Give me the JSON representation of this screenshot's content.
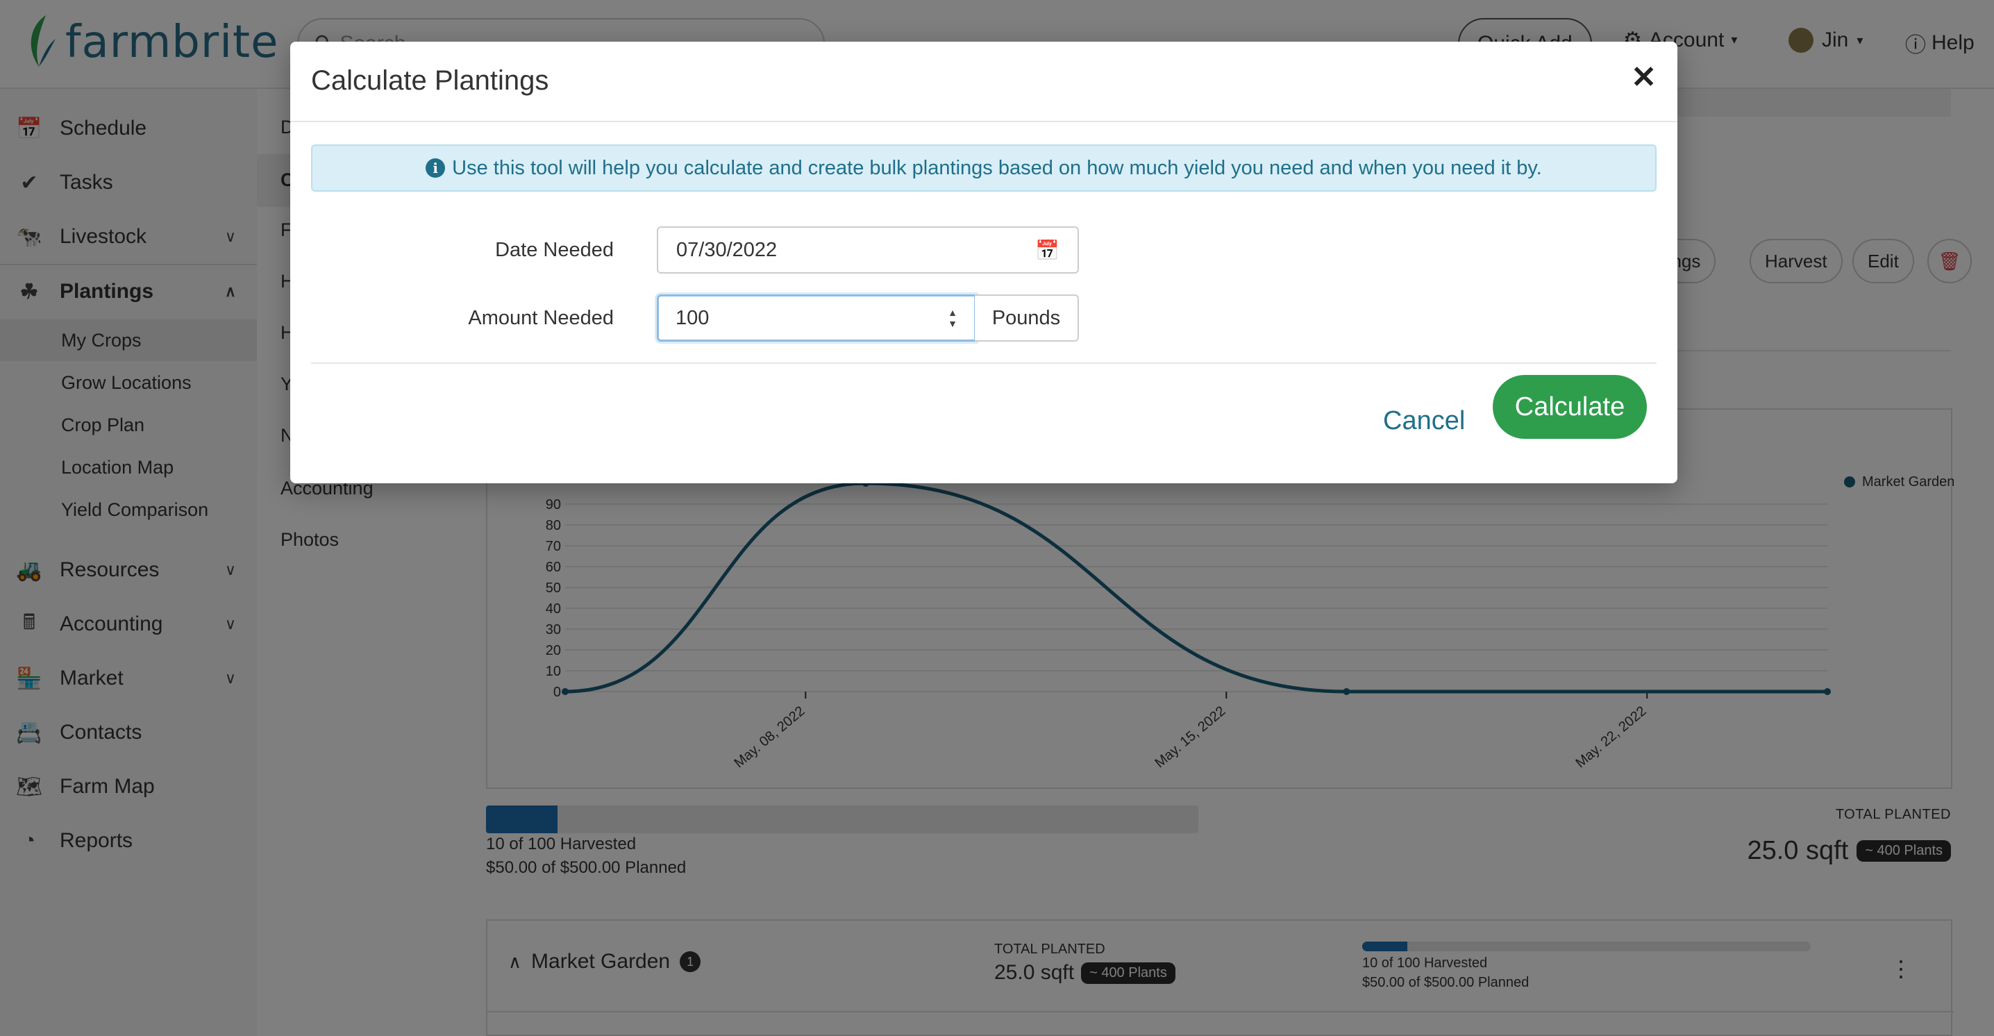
{
  "header": {
    "brand": "farmbrite",
    "search_placeholder": "Search",
    "quick_add": "Quick Add",
    "account": "Account",
    "user": "Jin",
    "help": "Help"
  },
  "sidebar": {
    "items": [
      {
        "label": "Schedule",
        "icon": "calendar-icon"
      },
      {
        "label": "Tasks",
        "icon": "check-circle-icon"
      },
      {
        "label": "Livestock",
        "icon": "livestock-icon"
      },
      {
        "label": "Plantings",
        "icon": "seedling-icon"
      },
      {
        "label": "Resources",
        "icon": "tractor-icon"
      },
      {
        "label": "Accounting",
        "icon": "calculator-icon"
      },
      {
        "label": "Market",
        "icon": "store-icon"
      },
      {
        "label": "Contacts",
        "icon": "contact-book-icon"
      },
      {
        "label": "Farm Map",
        "icon": "map-icon"
      },
      {
        "label": "Reports",
        "icon": "pie-chart-icon"
      }
    ],
    "plantings_sub": [
      "My Crops",
      "Grow Locations",
      "Crop Plan",
      "Location Map",
      "Yield Comparison"
    ]
  },
  "col2": {
    "partial_items": [
      "D",
      "C",
      "F",
      "H",
      "H",
      "Y",
      "N"
    ],
    "accounting": "Accounting",
    "photos": "Photos"
  },
  "actions": {
    "plantings": "ntings",
    "harvest": "Harvest",
    "edit": "Edit"
  },
  "chart_data": {
    "type": "line",
    "title": "",
    "xlabel": "",
    "ylabel": "",
    "y_ticks": [
      0,
      10,
      20,
      30,
      40,
      50,
      60,
      70,
      80,
      90
    ],
    "x_ticks": [
      "May. 08, 2022",
      "May. 15, 2022",
      "May. 22, 2022"
    ],
    "legend_position": "top-right",
    "series": [
      {
        "name": "Market Garden",
        "color": "#1b5e7a",
        "points": [
          {
            "x": "2022-05-04",
            "y": 0
          },
          {
            "x": "2022-05-09",
            "y": 100
          },
          {
            "x": "2022-05-17",
            "y": 0
          },
          {
            "x": "2022-05-25",
            "y": 0
          }
        ]
      }
    ]
  },
  "summary": {
    "harvest_fraction": 0.1,
    "harvested": "10 of 100 Harvested",
    "planned": "$50.00 of $500.00 Planned",
    "total_planted_label": "TOTAL PLANTED",
    "total_planted_value": "25.0 sqft",
    "plants_badge": "~ 400 Plants"
  },
  "location_card": {
    "name": "Market Garden",
    "count": "1",
    "total_planted_label": "TOTAL PLANTED",
    "total_planted_value": "25.0 sqft",
    "plants_badge": "~ 400 Plants",
    "harvested": "10 of 100 Harvested",
    "planned": "$50.00 of $500.00 Planned"
  },
  "modal": {
    "title": "Calculate Plantings",
    "info": "Use this tool will help you calculate and create bulk plantings based on how much yield you need and when you need it by.",
    "date_label": "Date Needed",
    "date_value": "07/30/2022",
    "amount_label": "Amount Needed",
    "amount_value": "100",
    "unit": "Pounds",
    "cancel": "Cancel",
    "calculate": "Calculate"
  },
  "colors": {
    "brand": "#2a6f8a",
    "primary_green": "#2e9e4c",
    "link": "#1f6f8b",
    "chart_line": "#1b5e7a",
    "info_bg": "#d9eef6"
  }
}
